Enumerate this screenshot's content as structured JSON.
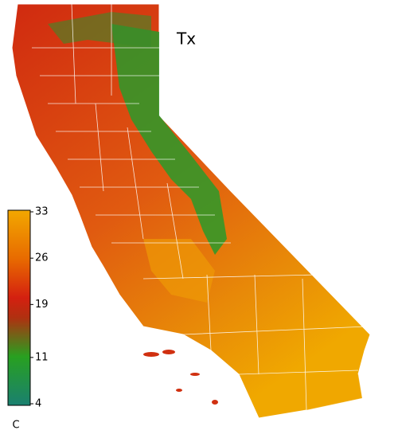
{
  "map": {
    "title": "Tx",
    "colorbar": {
      "range": [
        4,
        33
      ],
      "ticks": [
        33,
        26,
        19,
        11,
        4
      ],
      "unit": "C"
    }
  }
}
